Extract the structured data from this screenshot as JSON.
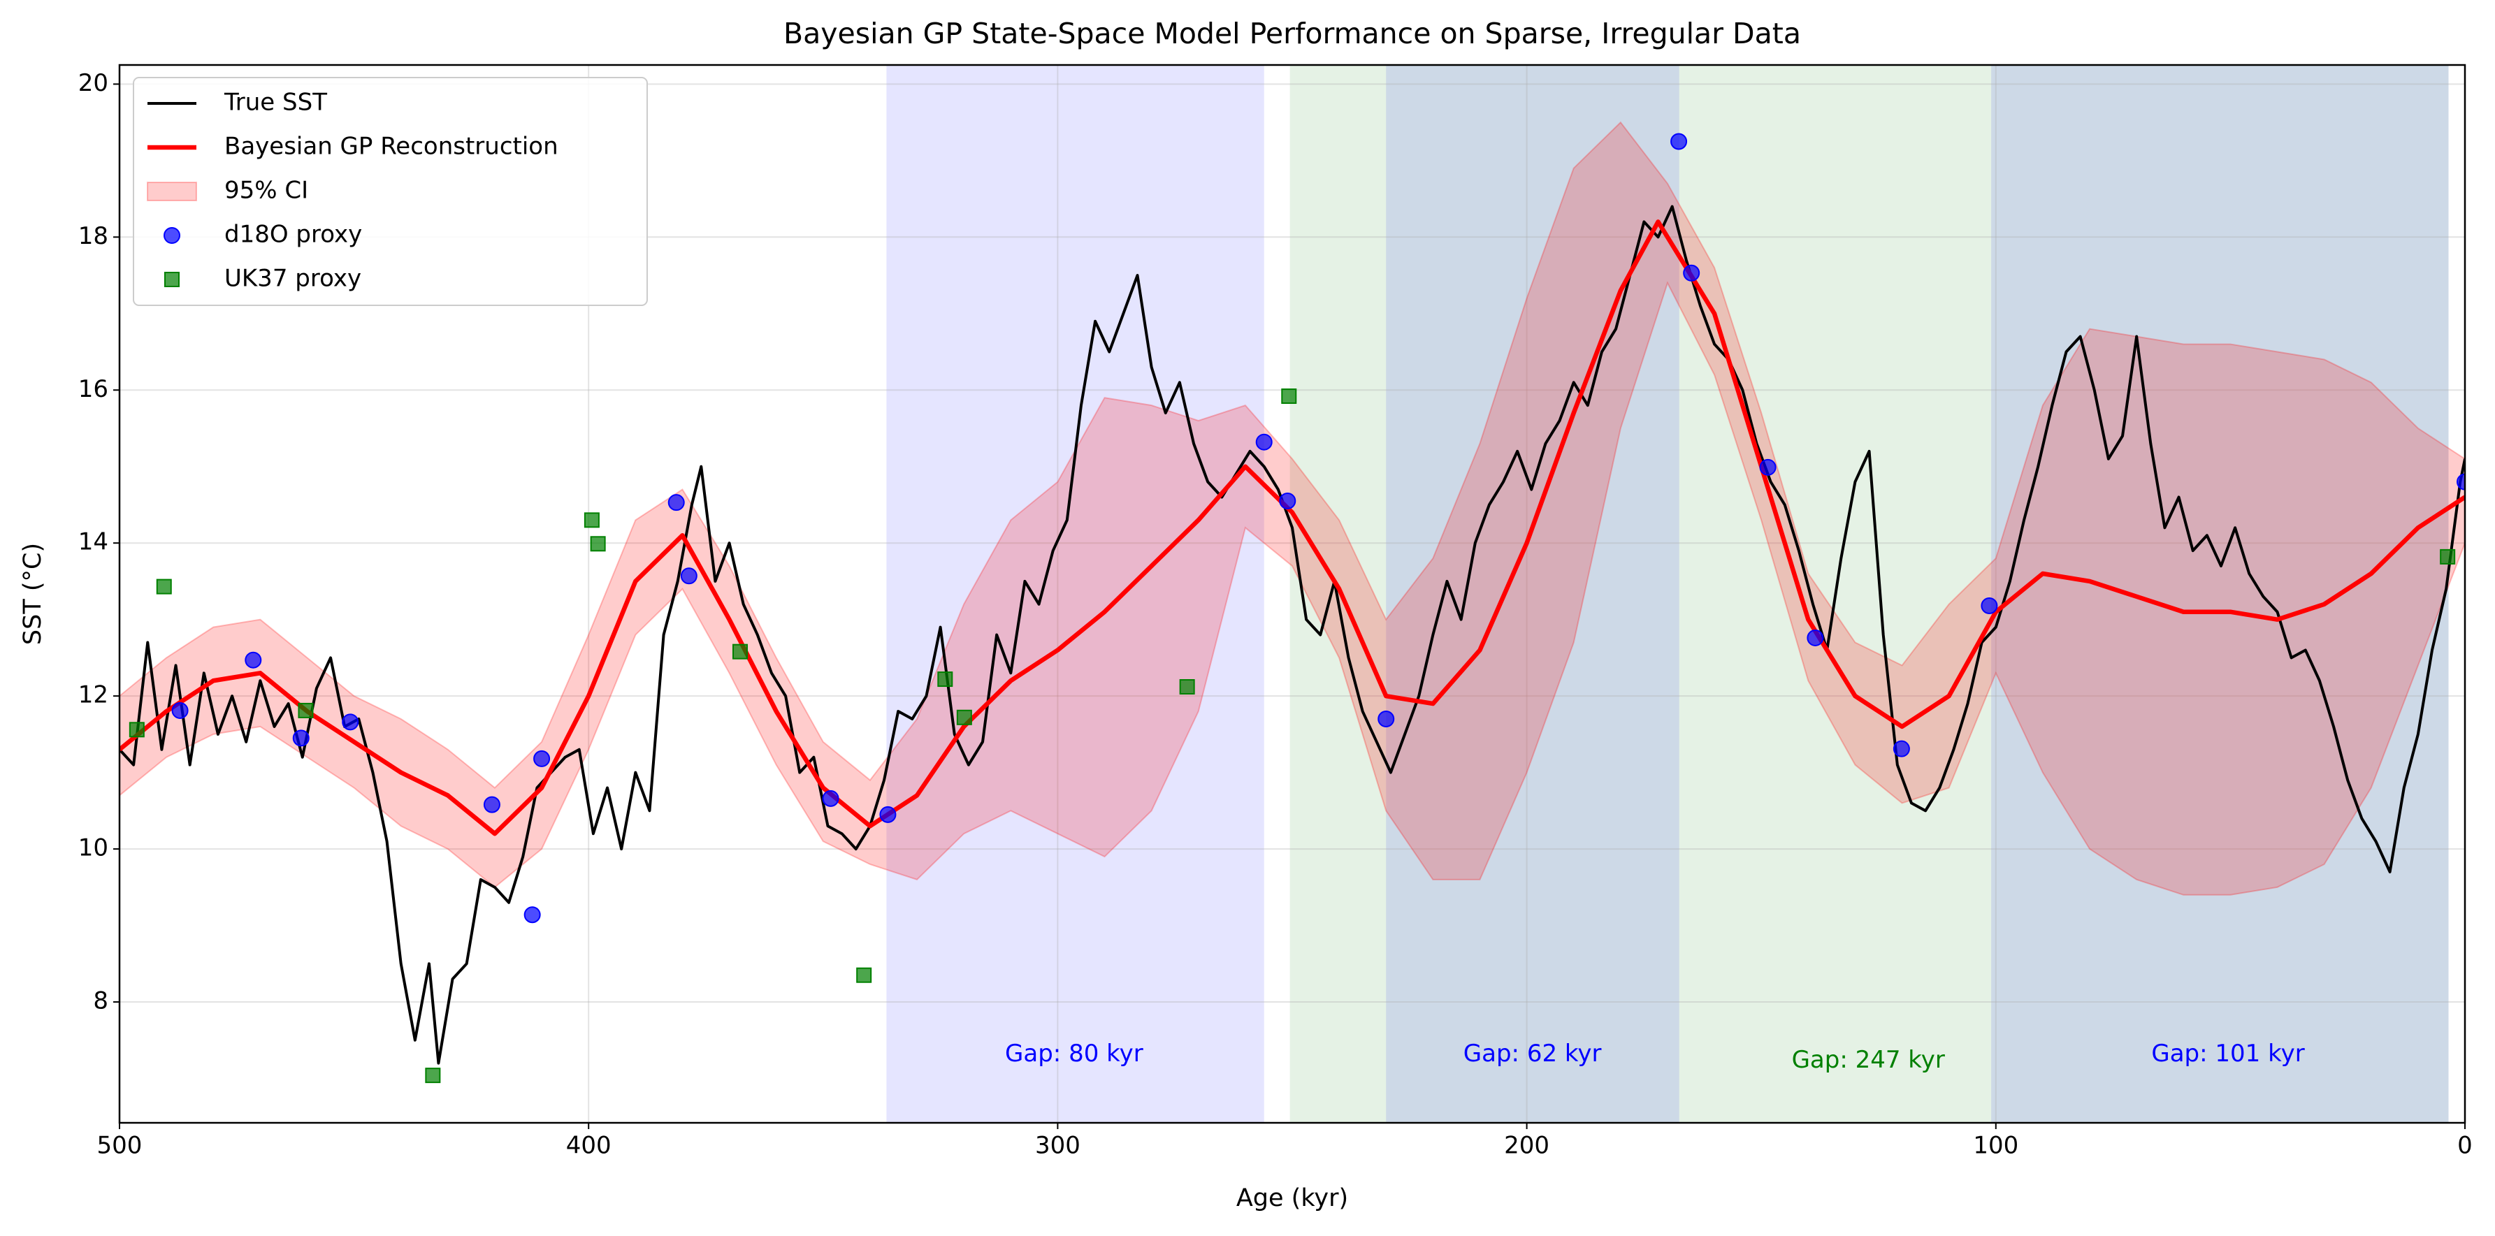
{
  "chart_data": {
    "type": "line",
    "title": "Bayesian GP State-Space Model Performance on Sparse, Irregular Data",
    "x_label": "Age (kyr)",
    "y_label": "SST (°C)",
    "xlim": [
      500,
      0
    ],
    "ylim": [
      6.42,
      20.25
    ],
    "xticks": [
      500,
      400,
      300,
      200,
      100,
      0
    ],
    "yticks": [
      8,
      10,
      12,
      14,
      16,
      18,
      20
    ],
    "grid": true,
    "legend": "upper left",
    "spans": [
      {
        "start": 336.5,
        "end": 256,
        "color": "#0000ff",
        "alpha": 0.1
      },
      {
        "start": 250.5,
        "end": 3.5,
        "color": "#008000",
        "alpha": 0.1
      },
      {
        "start": 230,
        "end": 167.5,
        "color": "#0000ff",
        "alpha": 0.1
      },
      {
        "start": 101,
        "end": 3.5,
        "color": "#0000ff",
        "alpha": 0.1
      }
    ],
    "annotations": [
      {
        "text": "Gap: 80 kyr",
        "x": 296.5,
        "y": 7.31,
        "color": "#0000ff"
      },
      {
        "text": "Gap: 62 kyr",
        "x": 198.8,
        "y": 7.31,
        "color": "#0000ff"
      },
      {
        "text": "Gap: 247 kyr",
        "x": 127.2,
        "y": 7.23,
        "color": "#008000"
      },
      {
        "text": "Gap: 101 kyr",
        "x": 50.5,
        "y": 7.31,
        "color": "#0000ff"
      }
    ],
    "series": [
      {
        "name": "True SST",
        "type": "line",
        "color": "#000000",
        "x": [
          500,
          497,
          494,
          491,
          488,
          485,
          482,
          479,
          476,
          473,
          470,
          467,
          464,
          461,
          458,
          455,
          452,
          449,
          446,
          443,
          440,
          437,
          434,
          432,
          429,
          426,
          423,
          420,
          417,
          414,
          411,
          408,
          405,
          402,
          399,
          396,
          393,
          390,
          387,
          384,
          381,
          378,
          376,
          373,
          370,
          367,
          364,
          361,
          358,
          355,
          352,
          349,
          346,
          343,
          340,
          337,
          334,
          331,
          328,
          325,
          322,
          319,
          316,
          313,
          310,
          307,
          304,
          301,
          298,
          295,
          292,
          289,
          286,
          283,
          280,
          277,
          274,
          271,
          268,
          265,
          262,
          259,
          256,
          253,
          250,
          247,
          244,
          241,
          238,
          235,
          232,
          229,
          226,
          223,
          220,
          217,
          214,
          211,
          208,
          205,
          202,
          199,
          196,
          193,
          190,
          187,
          184,
          181,
          178,
          175,
          172,
          169,
          166,
          163,
          160,
          157,
          154,
          151,
          148,
          145,
          142,
          139,
          136,
          133,
          130,
          127,
          124,
          121,
          118,
          115,
          112,
          109,
          106,
          103,
          100,
          97,
          94,
          91,
          88,
          85,
          82,
          79,
          76,
          73,
          70,
          67,
          64,
          61,
          58,
          55,
          52,
          49,
          46,
          43,
          40,
          37,
          34,
          31,
          28,
          25,
          22,
          19,
          16,
          13,
          10,
          7,
          4,
          1,
          0
        ],
        "values": [
          11.3,
          11.1,
          12.7,
          11.3,
          12.4,
          11.1,
          12.3,
          11.5,
          12.0,
          11.4,
          12.2,
          11.6,
          11.9,
          11.2,
          12.1,
          12.5,
          11.6,
          11.7,
          11.0,
          10.1,
          8.5,
          7.5,
          8.5,
          7.2,
          8.3,
          8.5,
          9.6,
          9.5,
          9.3,
          9.9,
          10.8,
          11.0,
          11.2,
          11.3,
          10.2,
          10.8,
          10.0,
          11.0,
          10.5,
          12.8,
          13.5,
          14.5,
          15.0,
          13.5,
          14.0,
          13.2,
          12.8,
          12.3,
          12.0,
          11.0,
          11.2,
          10.3,
          10.2,
          10.0,
          10.3,
          10.9,
          11.8,
          11.7,
          12.0,
          12.9,
          11.5,
          11.1,
          11.4,
          12.8,
          12.3,
          13.5,
          13.2,
          13.9,
          14.3,
          15.8,
          16.9,
          16.5,
          17.0,
          17.5,
          16.3,
          15.7,
          16.1,
          15.3,
          14.8,
          14.6,
          14.9,
          15.2,
          15.0,
          14.7,
          14.2,
          13.0,
          12.8,
          13.5,
          12.5,
          11.8,
          11.4,
          11.0,
          11.5,
          12.0,
          12.8,
          13.5,
          13.0,
          14.0,
          14.5,
          14.8,
          15.2,
          14.7,
          15.3,
          15.6,
          16.1,
          15.8,
          16.5,
          16.8,
          17.5,
          18.2,
          18.0,
          18.4,
          17.7,
          17.1,
          16.6,
          16.4,
          16.0,
          15.3,
          14.8,
          14.5,
          13.9,
          13.2,
          12.6,
          13.8,
          14.8,
          15.2,
          12.8,
          11.1,
          10.6,
          10.5,
          10.8,
          11.3,
          11.9,
          12.7,
          12.9,
          13.5,
          14.3,
          15.0,
          15.8,
          16.5,
          16.7,
          16.0,
          15.1,
          15.4,
          16.7,
          15.3,
          14.2,
          14.6,
          13.9,
          14.1,
          13.7,
          14.2,
          13.6,
          13.3,
          13.1,
          12.5,
          12.6,
          12.2,
          11.6,
          10.9,
          10.4,
          10.1,
          9.7,
          10.8,
          11.5,
          12.6,
          13.4,
          14.8,
          15.1
        ]
      },
      {
        "name": "Bayesian GP Reconstruction",
        "type": "line",
        "color": "#ff0000",
        "x": [
          500,
          490,
          480,
          470,
          460,
          450,
          440,
          430,
          420,
          410,
          400,
          390,
          380,
          370,
          360,
          350,
          340,
          330,
          320,
          310,
          300,
          290,
          280,
          270,
          260,
          250,
          240,
          230,
          220,
          210,
          200,
          190,
          180,
          172,
          160,
          150,
          140,
          130,
          120,
          110,
          100,
          90,
          80,
          70,
          60,
          50,
          40,
          30,
          20,
          10,
          0
        ],
        "values": [
          11.3,
          11.8,
          12.2,
          12.3,
          11.8,
          11.4,
          11.0,
          10.7,
          10.2,
          10.8,
          12.0,
          13.5,
          14.1,
          13.0,
          11.8,
          10.8,
          10.3,
          10.7,
          11.6,
          12.2,
          12.6,
          13.1,
          13.7,
          14.3,
          15.0,
          14.4,
          13.4,
          12.0,
          11.9,
          12.6,
          14.0,
          15.7,
          17.3,
          18.2,
          17.0,
          15.0,
          13.0,
          12.0,
          11.6,
          12.0,
          13.1,
          13.6,
          13.5,
          13.3,
          13.1,
          13.1,
          13.0,
          13.2,
          13.6,
          14.2,
          14.6
        ]
      },
      {
        "name": "95% CI",
        "type": "band",
        "color": "#ff0000",
        "x": [
          500,
          490,
          480,
          470,
          460,
          450,
          440,
          430,
          420,
          410,
          400,
          390,
          380,
          370,
          360,
          350,
          340,
          330,
          320,
          310,
          300,
          290,
          280,
          270,
          260,
          250,
          240,
          230,
          220,
          210,
          200,
          190,
          180,
          170,
          160,
          150,
          140,
          130,
          120,
          110,
          100,
          90,
          80,
          70,
          60,
          50,
          40,
          30,
          20,
          10,
          0
        ],
        "lower": [
          10.7,
          11.2,
          11.5,
          11.6,
          11.2,
          10.8,
          10.3,
          10.0,
          9.5,
          10.0,
          11.3,
          12.8,
          13.4,
          12.3,
          11.1,
          10.1,
          9.8,
          9.6,
          10.2,
          10.5,
          10.2,
          9.9,
          10.5,
          11.8,
          14.2,
          13.7,
          12.5,
          10.5,
          9.6,
          9.6,
          11.0,
          12.7,
          15.5,
          17.4,
          16.2,
          14.3,
          12.2,
          11.1,
          10.6,
          10.8,
          12.3,
          11.0,
          10.0,
          9.6,
          9.4,
          9.4,
          9.5,
          9.8,
          10.8,
          12.4,
          14.0
        ],
        "upper": [
          12.0,
          12.5,
          12.9,
          13.0,
          12.5,
          12.0,
          11.7,
          11.3,
          10.8,
          11.4,
          12.8,
          14.3,
          14.7,
          13.7,
          12.5,
          11.4,
          10.9,
          11.7,
          13.2,
          14.3,
          14.8,
          15.9,
          15.8,
          15.6,
          15.8,
          15.1,
          14.3,
          13.0,
          13.8,
          15.3,
          17.2,
          18.9,
          19.5,
          18.7,
          17.6,
          15.7,
          13.6,
          12.7,
          12.4,
          13.2,
          13.8,
          15.8,
          16.8,
          16.7,
          16.6,
          16.6,
          16.5,
          16.4,
          16.1,
          15.5,
          15.1
        ]
      },
      {
        "name": "d18O proxy",
        "type": "scatter",
        "marker": "circle",
        "color": "#0000ff",
        "x": [
          487.1,
          471.5,
          461.3,
          450.8,
          420.6,
          412,
          410,
          381.3,
          378.6,
          348.4,
          336.2,
          256,
          251,
          230,
          167.6,
          164.9,
          148.6,
          138.5,
          120.1,
          101.4,
          0
        ],
        "values": [
          11.81,
          12.47,
          11.45,
          11.66,
          10.58,
          9.14,
          11.18,
          14.53,
          13.57,
          10.66,
          10.45,
          15.32,
          14.55,
          11.7,
          19.25,
          17.53,
          14.99,
          12.76,
          11.31,
          13.18,
          14.8
        ]
      },
      {
        "name": "UK37 proxy",
        "type": "scatter",
        "marker": "square",
        "color": "#008000",
        "x": [
          496.3,
          490.5,
          460.3,
          433.2,
          399.3,
          398,
          367.7,
          341.3,
          324,
          319.9,
          272.4,
          250.7,
          3.7
        ],
        "values": [
          11.56,
          13.43,
          11.81,
          7.04,
          14.3,
          13.99,
          12.58,
          8.35,
          12.22,
          11.72,
          12.12,
          15.92,
          13.82
        ]
      }
    ]
  }
}
